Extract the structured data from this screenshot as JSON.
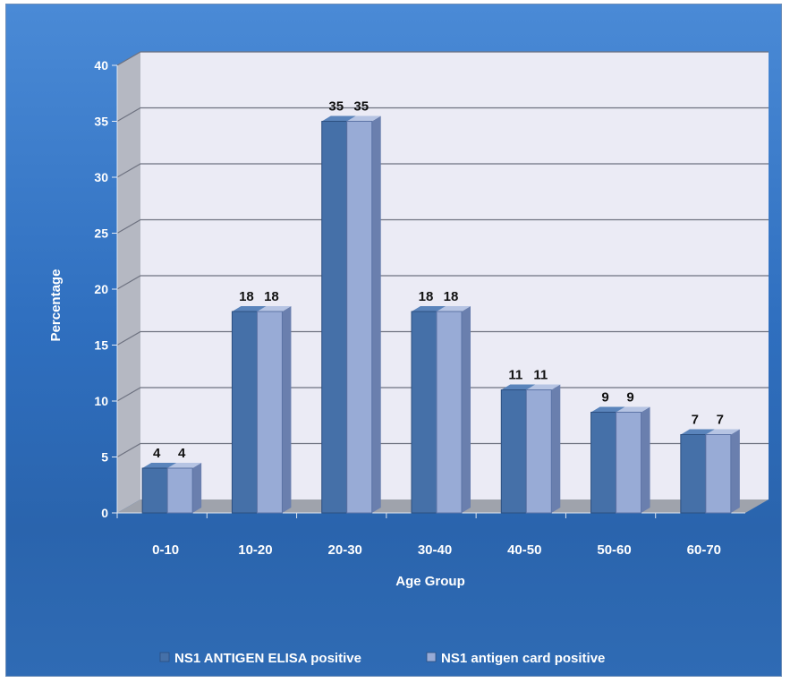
{
  "chart_data": {
    "type": "bar",
    "title": "",
    "xlabel": "Age Group",
    "ylabel": "Percentage",
    "categories": [
      "0-10",
      "10-20",
      "20-30",
      "30-40",
      "40-50",
      "50-60",
      "60-70"
    ],
    "series": [
      {
        "name": "NS1 ANTIGEN ELISA positive",
        "values": [
          4,
          18,
          35,
          18,
          11,
          9,
          7
        ],
        "data_labels": [
          "4",
          "18",
          "35",
          "18",
          "11",
          "9",
          "7"
        ],
        "color": "#4570a8"
      },
      {
        "name": "NS1 antigen card positive",
        "values": [
          4,
          18,
          35,
          18,
          11,
          9,
          7
        ],
        "data_labels": [
          "4",
          "18",
          "35",
          "18",
          "11",
          "9",
          "7"
        ],
        "color": "#98abd6"
      }
    ],
    "ylim": [
      0,
      40
    ],
    "yticks": [
      "0",
      "5",
      "10",
      "15",
      "20",
      "25",
      "30",
      "35",
      "40"
    ],
    "grid": true,
    "legend": "bottom",
    "style": "3d-clustered-bar"
  }
}
